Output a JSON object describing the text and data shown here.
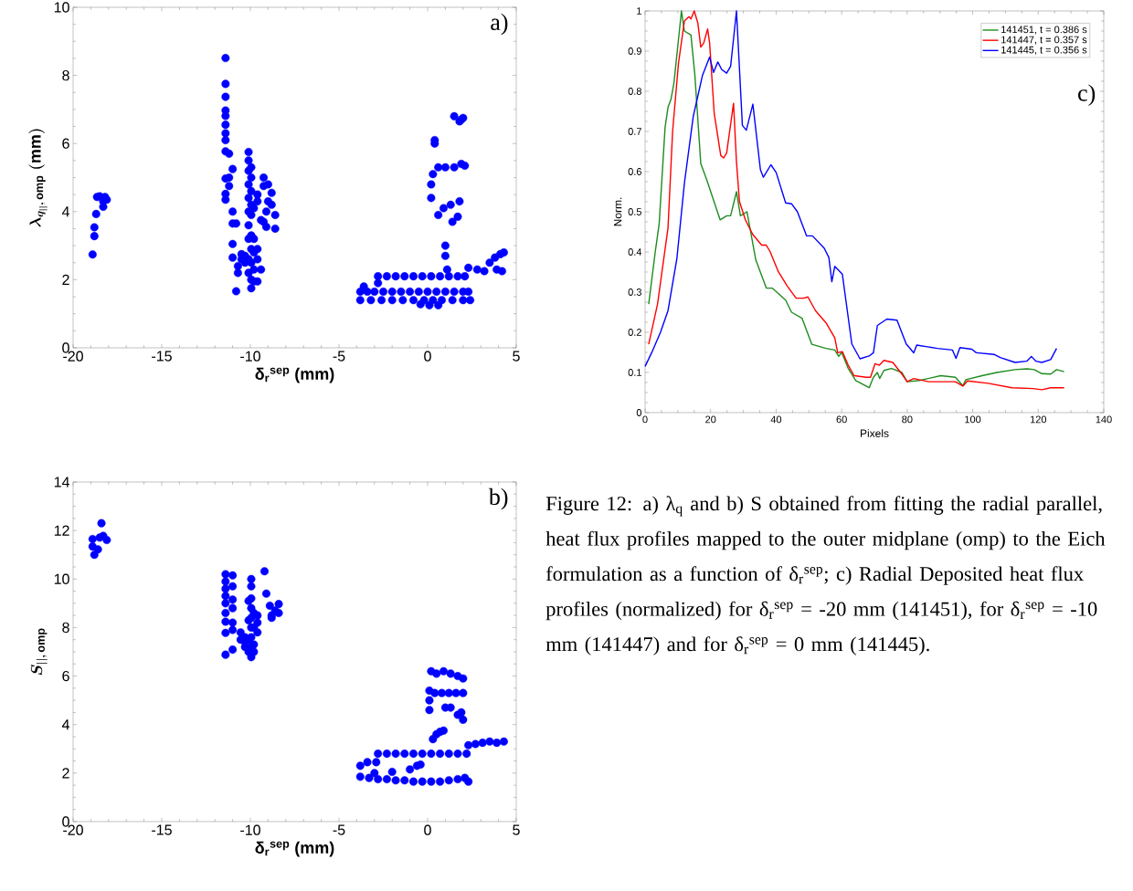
{
  "chart_data": [
    {
      "type": "scatter",
      "xlabel": "δ$_{r}$$^{sep}$ (mm)",
      "ylabel": "\\lambda_{q_{||},\\,\\mathrm{omp}}\\ \\mathrm{(mm)}",
      "color": "#0000ff",
      "marker": "circle",
      "xlim": [
        -20,
        5
      ],
      "ylim": [
        0,
        10
      ],
      "xticks": [
        -20,
        -15,
        -10,
        -5,
        0,
        5
      ],
      "yticks": [
        0,
        2,
        4,
        6,
        8,
        10
      ],
      "annotations": [
        "a)"
      ],
      "x": [
        -18.9,
        -18.8,
        -18.8,
        -18.7,
        -18.65,
        -18.5,
        -18.3,
        -18.2,
        -18.3,
        -18.1,
        -11.4,
        -11.4,
        -11.4,
        -11.4,
        -11.4,
        -11.4,
        -11.4,
        -11.4,
        -11.4,
        -11.4,
        -11.4,
        -11.4,
        -11.2,
        -11.2,
        -11.2,
        -11.0,
        -11.0,
        -11.0,
        -11.0,
        -11.0,
        -10.8,
        -10.8,
        -10.7,
        -10.7,
        -10.5,
        -10.5,
        -10.3,
        -10.3,
        -10.1,
        -10.1,
        -10.1,
        -10.1,
        -10.1,
        -10.1,
        -10.1,
        -10.1,
        -10.1,
        -10.1,
        -9.95,
        -9.95,
        -9.95,
        -9.95,
        -9.95,
        -9.95,
        -9.95,
        -9.95,
        -9.95,
        -9.95,
        -9.8,
        -9.8,
        -9.8,
        -9.8,
        -9.8,
        -9.6,
        -9.6,
        -9.6,
        -9.6,
        -9.6,
        -9.4,
        -9.4,
        -9.25,
        -9.25,
        -9.25,
        -9.1,
        -9.1,
        -9.0,
        -9.0,
        -8.8,
        -8.8,
        -8.6,
        -8.6,
        -3.8,
        -3.4,
        -3.0,
        -2.5,
        -2.0,
        -1.5,
        -1.0,
        -0.5,
        0.0,
        0.5,
        1.0,
        1.5,
        2.0,
        2.3,
        -3.8,
        -3.2,
        -2.6,
        -2.0,
        -1.4,
        -0.8,
        -0.2,
        0.3,
        0.8,
        1.4,
        2.0,
        2.4,
        -0.4,
        0.1,
        0.6,
        -2.8,
        -2.3,
        -1.8,
        -1.3,
        -0.8,
        -0.3,
        0.2,
        0.7,
        1.2,
        1.7,
        2.1,
        -2.8,
        -3.6,
        0.2,
        0.2,
        0.3,
        0.4,
        0.4,
        0.6,
        1.0,
        1.5,
        1.9,
        2.1,
        1.5,
        1.9,
        2.0,
        1.8,
        0.6,
        0.9,
        1.3,
        1.8,
        1.4,
        1.7,
        1.0,
        1.0,
        1.1,
        2.3,
        2.8,
        3.2,
        3.5,
        3.8,
        4.1,
        4.3,
        3.9,
        4.2
      ],
      "values": [
        2.74,
        3.28,
        3.54,
        3.93,
        4.43,
        4.45,
        4.3,
        4.43,
        4.14,
        4.35,
        8.51,
        7.75,
        7.37,
        6.97,
        6.81,
        6.55,
        6.3,
        6.1,
        5.77,
        4.97,
        4.52,
        4.35,
        5.7,
        5.0,
        4.75,
        5.25,
        4.0,
        3.65,
        3.05,
        2.65,
        1.66,
        3.65,
        2.4,
        2.2,
        2.6,
        2.75,
        2.5,
        2.7,
        5.75,
        5.5,
        5.2,
        4.8,
        4.4,
        4.0,
        3.6,
        3.2,
        2.6,
        2.2,
        5.3,
        5.0,
        4.6,
        4.2,
        3.9,
        3.3,
        2.9,
        2.5,
        2.0,
        1.75,
        4.1,
        3.2,
        2.8,
        2.3,
        1.95,
        4.5,
        4.3,
        2.9,
        2.6,
        1.95,
        3.75,
        2.3,
        5.0,
        4.75,
        3.7,
        4.0,
        3.55,
        4.8,
        4.3,
        4.55,
        4.2,
        3.9,
        3.5,
        1.65,
        1.65,
        1.65,
        1.65,
        1.65,
        1.65,
        1.65,
        1.65,
        1.65,
        1.65,
        1.65,
        1.65,
        1.65,
        1.65,
        1.4,
        1.4,
        1.4,
        1.4,
        1.4,
        1.4,
        1.4,
        1.4,
        1.4,
        1.4,
        1.4,
        1.4,
        1.28,
        1.25,
        1.25,
        2.1,
        2.1,
        2.1,
        2.1,
        2.1,
        2.1,
        2.1,
        2.1,
        2.1,
        2.1,
        2.1,
        1.9,
        1.8,
        4.4,
        4.8,
        5.1,
        6.1,
        6.0,
        5.3,
        5.3,
        5.3,
        5.4,
        5.35,
        6.8,
        6.7,
        6.75,
        6.65,
        3.9,
        4.1,
        4.2,
        4.3,
        3.7,
        3.85,
        3.0,
        2.7,
        2.3,
        2.35,
        2.3,
        2.25,
        2.5,
        2.65,
        2.75,
        2.8,
        2.3,
        2.25
      ]
    },
    {
      "type": "scatter",
      "xlabel": "δ$_{r}$$^{sep}$ (mm)",
      "ylabel": "S_{||,\\,\\mathrm{omp}}",
      "color": "#0000ff",
      "marker": "circle",
      "xlim": [
        -20,
        5
      ],
      "ylim": [
        0,
        14
      ],
      "xticks": [
        -20,
        -15,
        -10,
        -5,
        0,
        5
      ],
      "yticks": [
        0,
        2,
        4,
        6,
        8,
        10,
        12,
        14
      ],
      "annotations": [
        "b)"
      ],
      "x": [
        -18.9,
        -18.9,
        -18.8,
        -18.6,
        -18.4,
        -18.5,
        -18.3,
        -18.1,
        -11.4,
        -11.4,
        -11.4,
        -11.4,
        -11.4,
        -11.4,
        -11.4,
        -11.4,
        -11.4,
        -11.0,
        -11.0,
        -11.0,
        -11.0,
        -11.0,
        -11.0,
        -11.0,
        -10.55,
        -10.55,
        -10.3,
        -10.3,
        -10.3,
        -10.1,
        -10.1,
        -10.1,
        -10.1,
        -9.95,
        -9.95,
        -9.95,
        -9.95,
        -9.95,
        -9.95,
        -9.95,
        -9.95,
        -9.95,
        -9.8,
        -9.8,
        -9.8,
        -9.8,
        -9.6,
        -9.6,
        -9.6,
        -9.2,
        -9.1,
        -8.9,
        -8.8,
        -8.8,
        -8.6,
        -8.4,
        -8.4,
        -2.8,
        -2.3,
        -1.8,
        -1.3,
        -0.8,
        -0.3,
        0.2,
        0.7,
        1.2,
        1.7,
        2.2,
        -3.8,
        -3.3,
        -2.8,
        -2.3,
        -1.8,
        -1.3,
        -0.8,
        -0.3,
        0.2,
        0.7,
        1.2,
        1.7,
        2.1,
        2.3,
        -3.0,
        -2.0,
        -1.0,
        -0.6,
        -0.4,
        -3.8,
        -3.4,
        -2.9,
        2.3,
        2.7,
        3.1,
        3.5,
        3.9,
        4.3,
        0.3,
        0.5,
        0.7,
        0.9,
        0.1,
        0.1,
        0.1,
        0.2,
        0.5,
        0.9,
        1.3,
        1.7,
        2.0,
        0.4,
        0.8,
        1.2,
        1.6,
        2.0,
        1.0,
        1.3,
        1.7,
        2.0,
        1.9
      ],
      "values": [
        11.65,
        11.34,
        11.0,
        11.22,
        12.3,
        11.71,
        11.78,
        11.61,
        10.2,
        9.9,
        9.6,
        9.3,
        9.0,
        8.6,
        8.24,
        7.78,
        6.88,
        10.15,
        9.7,
        9.15,
        8.8,
        8.2,
        7.9,
        7.09,
        7.8,
        7.5,
        7.6,
        7.2,
        7.4,
        9.1,
        8.3,
        7.5,
        7.0,
        10.0,
        9.7,
        9.2,
        8.8,
        8.4,
        8.0,
        7.6,
        7.2,
        6.78,
        8.6,
        8.0,
        7.3,
        7.0,
        8.5,
        8.2,
        7.8,
        10.32,
        9.4,
        8.9,
        8.5,
        8.4,
        8.7,
        8.97,
        8.6,
        2.8,
        2.8,
        2.8,
        2.8,
        2.8,
        2.8,
        2.8,
        2.8,
        2.8,
        2.8,
        2.8,
        1.85,
        1.8,
        1.75,
        1.75,
        1.7,
        1.7,
        1.65,
        1.65,
        1.65,
        1.65,
        1.7,
        1.75,
        1.8,
        1.65,
        2.0,
        2.05,
        2.15,
        2.3,
        2.35,
        2.3,
        2.45,
        2.45,
        3.15,
        3.2,
        3.25,
        3.3,
        3.25,
        3.3,
        3.4,
        3.6,
        3.7,
        3.75,
        5.4,
        5.0,
        4.6,
        6.2,
        6.1,
        6.2,
        6.1,
        6.0,
        5.9,
        5.3,
        5.3,
        5.3,
        5.3,
        5.3,
        4.7,
        4.7,
        4.4,
        4.2,
        4.5
      ]
    },
    {
      "type": "line",
      "xlabel": "Pixels",
      "ylabel": "Norm.",
      "xlim": [
        0,
        140
      ],
      "ylim": [
        0,
        1
      ],
      "xticks": [
        0,
        20,
        40,
        60,
        80,
        100,
        120,
        140
      ],
      "yticks": [
        0,
        0.1,
        0.2,
        0.3,
        0.4,
        0.5,
        0.6,
        0.7,
        0.8,
        0.9,
        1
      ],
      "legend": "top right",
      "annotations": [
        "c)",
        "Figure 12: a) λ$_{q}$ and b) S obtained from fitting the radial parallel, heat flux profiles mapped to the outer midplane (omp) to the Eich formulation as a function of δ$_{r}$$^{sep}$; c) Radial Deposited heat flux profiles (normalized) for δ$_{r}$$^{sep}$ = -20 mm (141451), for δ$_{r}$$^{sep}$ = -10 mm (141447) and for δ$_{r}$$^{sep}$ = 0 mm (141445)."
      ],
      "series": [
        {
          "name": "141451, t = 0.386 s",
          "color": "#1e8c1e",
          "x": [
            1.1,
            3.1,
            4.3,
            6.1,
            7,
            7.9,
            8.8,
            11.1,
            12,
            14,
            15.2,
            17,
            18.8,
            22.9,
            24.9,
            26.1,
            27.9,
            29.1,
            31.1,
            33.8,
            37,
            38.8,
            40.2,
            42.9,
            44.7,
            47.9,
            50.9,
            55.2,
            57.9,
            59.1,
            60,
            62,
            64.3,
            68.4,
            69.7,
            70.9,
            71.6,
            72.9,
            75.2,
            78.4,
            80,
            83.8,
            90.2,
            94.7,
            97,
            97.9,
            102.9,
            107.4,
            112.9,
            116.5,
            118.8,
            121.1,
            123.8,
            125.6,
            127.9
          ],
          "values": [
            0.27,
            0.4,
            0.47,
            0.71,
            0.76,
            0.78,
            0.82,
            1.0,
            0.95,
            0.94,
            0.84,
            0.62,
            0.58,
            0.48,
            0.49,
            0.49,
            0.55,
            0.49,
            0.5,
            0.38,
            0.31,
            0.31,
            0.3,
            0.28,
            0.25,
            0.235,
            0.17,
            0.16,
            0.156,
            0.14,
            0.15,
            0.11,
            0.08,
            0.062,
            0.088,
            0.1,
            0.085,
            0.105,
            0.11,
            0.1,
            0.077,
            0.08,
            0.092,
            0.088,
            0.067,
            0.082,
            0.092,
            0.1,
            0.107,
            0.109,
            0.107,
            0.097,
            0.096,
            0.107,
            0.102
          ]
        },
        {
          "name": "141447, t = 0.357 s",
          "color": "#ff0000",
          "x": [
            1.1,
            3.8,
            7,
            8.4,
            10.2,
            12,
            13.4,
            14,
            15,
            16.1,
            17,
            17.9,
            19.1,
            19.7,
            21.1,
            23.1,
            24,
            24.9,
            27,
            27.9,
            28.8,
            30.6,
            32.9,
            35.6,
            37,
            38.2,
            40.6,
            43.4,
            46.1,
            48.4,
            49.7,
            52,
            55.2,
            57.9,
            58.8,
            60.2,
            62,
            63.8,
            67.5,
            68.8,
            70.2,
            71.5,
            72.9,
            75.6,
            78.4,
            80,
            82,
            86.5,
            94.7,
            97,
            98.4,
            104.7,
            112,
            118.4,
            121.1,
            123.8,
            127.9
          ],
          "values": [
            0.17,
            0.27,
            0.46,
            0.7,
            0.87,
            0.975,
            0.986,
            0.98,
            1.0,
            0.97,
            0.91,
            0.92,
            0.955,
            0.92,
            0.745,
            0.64,
            0.634,
            0.647,
            0.77,
            0.624,
            0.526,
            0.48,
            0.443,
            0.417,
            0.417,
            0.4,
            0.352,
            0.315,
            0.285,
            0.285,
            0.288,
            0.254,
            0.224,
            0.186,
            0.149,
            0.152,
            0.118,
            0.092,
            0.088,
            0.088,
            0.122,
            0.118,
            0.13,
            0.125,
            0.096,
            0.077,
            0.085,
            0.077,
            0.077,
            0.066,
            0.079,
            0.073,
            0.062,
            0.06,
            0.057,
            0.062,
            0.062
          ]
        },
        {
          "name": "141445, t = 0.356 s",
          "color": "#0000ff",
          "x": [
            0,
            2,
            4.7,
            7,
            9.7,
            12,
            14.7,
            17.5,
            19.7,
            20.9,
            22.2,
            23.4,
            24.9,
            26.1,
            27.9,
            29.7,
            30.9,
            32.9,
            35.2,
            36.1,
            38.4,
            40,
            42.9,
            44.7,
            46.5,
            49.3,
            51.1,
            54.7,
            56.1,
            57,
            57.9,
            60.2,
            63.1,
            65.6,
            68.4,
            69.7,
            70.9,
            73.8,
            76.9,
            79.7,
            82,
            82.9,
            89.2,
            93.8,
            94.9,
            96.1,
            99.7,
            101.1,
            106.5,
            108.4,
            112.9,
            116.5,
            117.9,
            119.3,
            121.1,
            123.8,
            125.6
          ],
          "values": [
            0.115,
            0.149,
            0.2,
            0.254,
            0.383,
            0.571,
            0.737,
            0.839,
            0.885,
            0.847,
            0.873,
            0.854,
            0.845,
            0.862,
            1.0,
            0.715,
            0.703,
            0.768,
            0.605,
            0.586,
            0.617,
            0.598,
            0.522,
            0.52,
            0.5,
            0.44,
            0.44,
            0.409,
            0.386,
            0.326,
            0.364,
            0.345,
            0.171,
            0.134,
            0.141,
            0.149,
            0.217,
            0.233,
            0.23,
            0.171,
            0.149,
            0.168,
            0.16,
            0.156,
            0.135,
            0.162,
            0.158,
            0.149,
            0.145,
            0.137,
            0.125,
            0.128,
            0.14,
            0.128,
            0.125,
            0.132,
            0.16
          ]
        }
      ]
    }
  ]
}
